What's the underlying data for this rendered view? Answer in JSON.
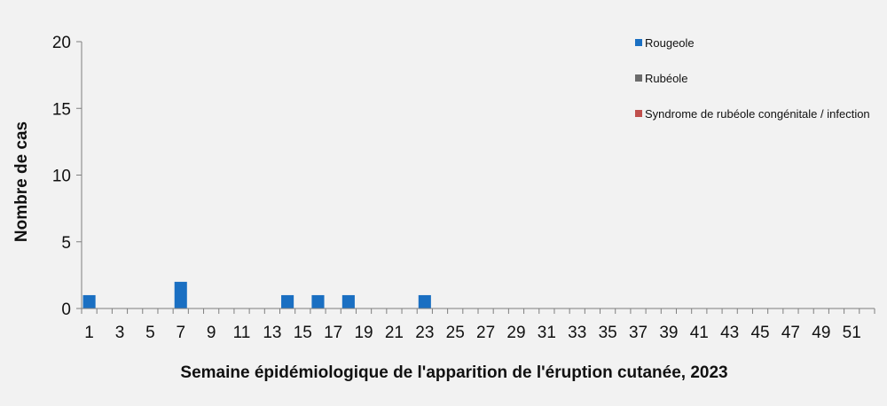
{
  "chart_data": {
    "type": "bar",
    "title": "",
    "xlabel": "Semaine épidémiologique de l'apparition de l'éruption cutanée, 2023",
    "ylabel": "Nombre de cas",
    "ylim": [
      0,
      20
    ],
    "yticks": [
      0,
      5,
      10,
      15,
      20
    ],
    "categories": [
      1,
      2,
      3,
      4,
      5,
      6,
      7,
      8,
      9,
      10,
      11,
      12,
      13,
      14,
      15,
      16,
      17,
      18,
      19,
      20,
      21,
      22,
      23,
      24,
      25,
      26,
      27,
      28,
      29,
      30,
      31,
      32,
      33,
      34,
      35,
      36,
      37,
      38,
      39,
      40,
      41,
      42,
      43,
      44,
      45,
      46,
      47,
      48,
      49,
      50,
      51,
      52
    ],
    "x_tick_labels": [
      "1",
      "3",
      "5",
      "7",
      "9",
      "11",
      "13",
      "15",
      "17",
      "19",
      "21",
      "23",
      "25",
      "27",
      "29",
      "31",
      "33",
      "35",
      "37",
      "39",
      "41",
      "43",
      "45",
      "47",
      "49",
      "51"
    ],
    "series": [
      {
        "name": "Rougeole",
        "color": "#1a6fc2",
        "values": [
          1,
          0,
          0,
          0,
          0,
          0,
          2,
          0,
          0,
          0,
          0,
          0,
          0,
          1,
          0,
          1,
          0,
          1,
          0,
          0,
          0,
          0,
          1,
          0,
          0,
          0,
          0,
          0,
          0,
          0,
          0,
          0,
          0,
          0,
          0,
          0,
          0,
          0,
          0,
          0,
          0,
          0,
          0,
          0,
          0,
          0,
          0,
          0,
          0,
          0,
          0,
          0
        ]
      },
      {
        "name": "Rubéole",
        "color": "#6b6b6b",
        "values": [
          0,
          0,
          0,
          0,
          0,
          0,
          0,
          0,
          0,
          0,
          0,
          0,
          0,
          0,
          0,
          0,
          0,
          0,
          0,
          0,
          0,
          0,
          0,
          0,
          0,
          0,
          0,
          0,
          0,
          0,
          0,
          0,
          0,
          0,
          0,
          0,
          0,
          0,
          0,
          0,
          0,
          0,
          0,
          0,
          0,
          0,
          0,
          0,
          0,
          0,
          0,
          0
        ]
      },
      {
        "name": "Syndrome de rubéole congénitale / infection",
        "color": "#c0504d",
        "values": [
          0,
          0,
          0,
          0,
          0,
          0,
          0,
          0,
          0,
          0,
          0,
          0,
          0,
          0,
          0,
          0,
          0,
          0,
          0,
          0,
          0,
          0,
          0,
          0,
          0,
          0,
          0,
          0,
          0,
          0,
          0,
          0,
          0,
          0,
          0,
          0,
          0,
          0,
          0,
          0,
          0,
          0,
          0,
          0,
          0,
          0,
          0,
          0,
          0,
          0,
          0,
          0
        ]
      }
    ],
    "stacked": true,
    "legend_position": "top-right",
    "grid": false
  }
}
